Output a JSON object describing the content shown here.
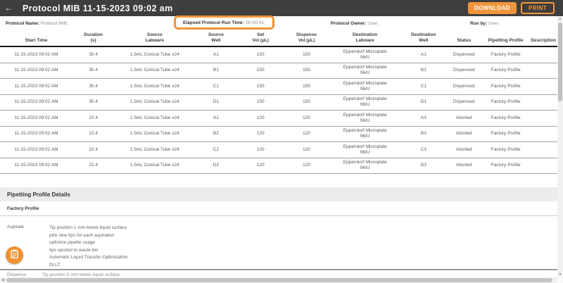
{
  "header": {
    "title": "Protocol MIB 11-15-2023 09:02 am",
    "download_label": "DOWNLOAD",
    "print_label": "PRINT"
  },
  "icons": {
    "back": "←",
    "scroll_up": "▲",
    "scroll_down": "▼",
    "scroll_left": "◀"
  },
  "info_bar": {
    "protocol_name_label": "Protocol Name:",
    "protocol_name_value": "Protocol MIB;",
    "elapsed_label": "Elapsed Protocol Run Time:",
    "elapsed_value": "00:00:41;",
    "owner_label": "Protocol Owner:",
    "owner_value": "User;",
    "run_by_label": "Run by:",
    "run_by_value": "User;"
  },
  "table": {
    "columns": [
      "Start Time",
      "Duration\n(s)",
      "Source\nLabware",
      "Source\nWell",
      "Set\nVol (µL)",
      "Dispense\nVol (µL)",
      "Destination\nLabware",
      "Destination\nWell",
      "Status",
      "Pipetting Profile",
      "Description"
    ],
    "rows": [
      [
        "11-15-2023 09:02 AM",
        "30.4",
        "1.5mL Conical Tube x24",
        "A1",
        "150",
        "150",
        "Eppendorf Microplate\n96/U",
        "A1",
        "Dispensed",
        "Factory Profile",
        ""
      ],
      [
        "11-15-2023 09:02 AM",
        "30.4",
        "1.5mL Conical Tube x24",
        "B1",
        "150",
        "150",
        "Eppendorf Microplate\n96/U",
        "B1",
        "Dispensed",
        "Factory Profile",
        ""
      ],
      [
        "11-15-2023 09:02 AM",
        "30.4",
        "1.5mL Conical Tube x24",
        "C1",
        "150",
        "150",
        "Eppendorf Microplate\n96/U",
        "C1",
        "Dispensed",
        "Factory Profile",
        ""
      ],
      [
        "11-15-2023 09:02 AM",
        "30.4",
        "1.5mL Conical Tube x24",
        "D1",
        "150",
        "150",
        "Eppendorf Microplate\n96/U",
        "D1",
        "Dispensed",
        "Factory Profile",
        ""
      ],
      [
        "11-15-2023 09:02 AM",
        "22.4",
        "1.5mL Conical Tube x24",
        "A2",
        "120",
        "120",
        "Eppendorf Microplate\n96/U",
        "A3",
        "Aborted",
        "Factory Profile",
        ""
      ],
      [
        "11-15-2023 09:02 AM",
        "22.4",
        "1.5mL Conical Tube x24",
        "B2",
        "120",
        "120",
        "Eppendorf Microplate\n96/U",
        "B3",
        "Aborted",
        "Factory Profile",
        ""
      ],
      [
        "11-15-2023 09:02 AM",
        "22.4",
        "1.5mL Conical Tube x24",
        "C2",
        "120",
        "120",
        "Eppendorf Microplate\n96/U",
        "C3",
        "Aborted",
        "Factory Profile",
        ""
      ],
      [
        "11-15-2023 09:02 AM",
        "22.4",
        "1.5mL Conical Tube x24",
        "D2",
        "120",
        "120",
        "Eppendorf Microplate\n96/U",
        "D3",
        "Aborted",
        "Factory Profile",
        ""
      ]
    ]
  },
  "details": {
    "section_title": "Pipetting Profile Details",
    "profile_name": "Factory Profile",
    "aspirate_label": "Aspirate",
    "aspirate_lines": [
      "Tip position 1 mm below liquid surface",
      "pick new tips for each aspiration",
      "optimize pipette usage",
      "tips ejected to waste bin",
      "Automatic Liquid Transfer Optimization",
      "DLLT."
    ],
    "clipped_label": "Dispense",
    "clipped_line": "Tip position 5 mm below liquid surface"
  },
  "colors": {
    "accent_orange": "#F0953B",
    "topbar_gray": "#3E3E3E",
    "section_band_gray": "#ECECEC",
    "scroll_thumb": "#C1C1C1"
  }
}
